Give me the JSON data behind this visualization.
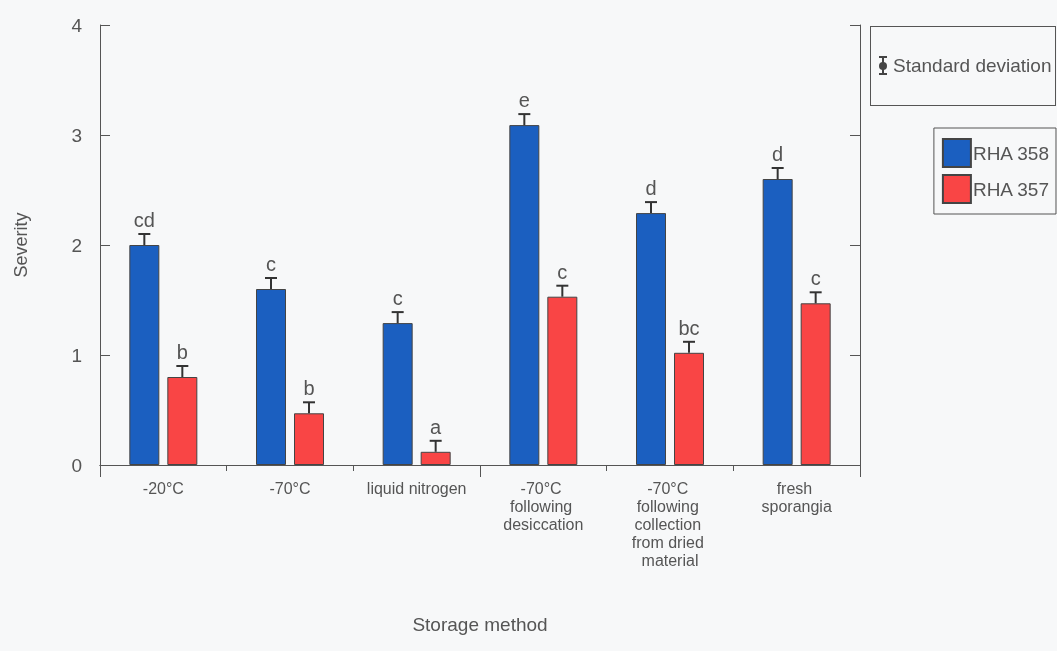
{
  "chart_data": {
    "type": "bar",
    "xlabel": "Storage method",
    "ylabel": "Severity",
    "categories": [
      "-20°C",
      "-70°C",
      "liquid nitrogen",
      "-70°C following desiccation",
      "-70°C following collection from dried material",
      "fresh sporangia"
    ],
    "series": [
      {
        "name": "RHA 358",
        "color": "#1b5fc0",
        "values": [
          2.0,
          1.6,
          1.29,
          3.09,
          2.29,
          2.6
        ],
        "errors": [
          0.1,
          0.1,
          0.1,
          0.1,
          0.1,
          0.1
        ],
        "value_labels": [
          "cd",
          "c",
          "c",
          "e",
          "d",
          "d"
        ]
      },
      {
        "name": "RHA 357",
        "color": "#f94545",
        "values": [
          0.8,
          0.47,
          0.12,
          1.53,
          1.02,
          1.47
        ],
        "errors": [
          0.1,
          0.1,
          0.1,
          0.1,
          0.1,
          0.1
        ],
        "value_labels": [
          "b",
          "b",
          "a",
          "c",
          "bc",
          "c"
        ]
      }
    ],
    "annotations": [
      "Standard deviation"
    ],
    "ylim": [
      0,
      4
    ],
    "yticks": [
      0,
      1,
      2,
      3,
      4
    ],
    "grid": false,
    "legend": "right"
  }
}
